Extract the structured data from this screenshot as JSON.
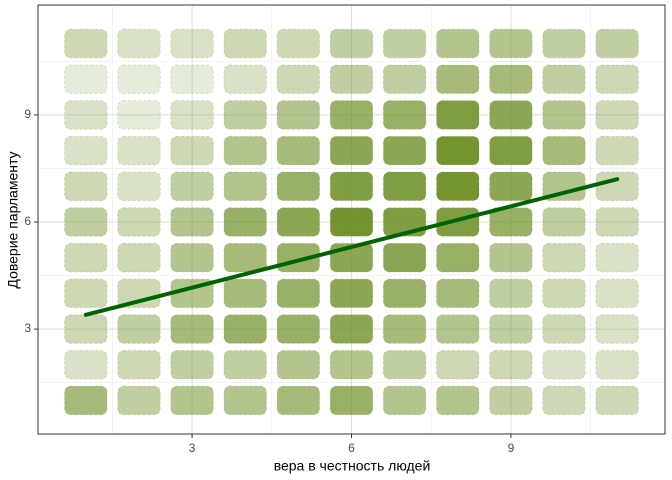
{
  "chart_data": {
    "type": "jitter-scatter",
    "x_label": "вера в честность людей",
    "y_label": "Доверие парламенту",
    "x": [
      1,
      2,
      3,
      4,
      5,
      6,
      7,
      8,
      9,
      10,
      11
    ],
    "y": [
      1,
      2,
      3,
      4,
      5,
      6,
      7,
      8,
      9,
      10,
      11
    ],
    "density": [
      [
        6,
        4,
        5,
        5,
        6,
        7,
        5,
        5,
        4,
        3,
        3
      ],
      [
        2,
        3,
        4,
        4,
        5,
        5,
        4,
        3,
        3,
        2,
        2
      ],
      [
        3,
        4,
        6,
        7,
        7,
        8,
        6,
        5,
        4,
        3,
        2
      ],
      [
        3,
        3,
        5,
        6,
        7,
        8,
        7,
        6,
        4,
        3,
        2
      ],
      [
        3,
        3,
        5,
        6,
        7,
        8,
        8,
        7,
        5,
        3,
        2
      ],
      [
        4,
        3,
        5,
        7,
        8,
        10,
        9,
        9,
        7,
        4,
        3
      ],
      [
        3,
        2,
        4,
        5,
        7,
        9,
        9,
        10,
        8,
        5,
        3
      ],
      [
        2,
        2,
        3,
        5,
        6,
        8,
        8,
        10,
        9,
        6,
        3
      ],
      [
        2,
        1,
        2,
        4,
        5,
        7,
        7,
        9,
        8,
        5,
        3
      ],
      [
        1,
        1,
        1,
        2,
        3,
        4,
        4,
        6,
        6,
        4,
        3
      ],
      [
        3,
        2,
        2,
        3,
        3,
        4,
        4,
        5,
        5,
        4,
        4
      ]
    ],
    "color": "#6b8e23",
    "fit": {
      "x": [
        1,
        11
      ],
      "values": [
        3.4,
        7.2
      ],
      "color": "#006400"
    },
    "xlim": [
      0.1,
      11.9
    ],
    "ylim": [
      0.06,
      12.08
    ],
    "xticks": [
      3,
      6,
      9
    ],
    "yticks": [
      3,
      6,
      9
    ],
    "xminor": [
      1.5,
      4.5,
      7.5,
      10.5
    ],
    "yminor": [
      1.5,
      4.5,
      7.5,
      10.5
    ],
    "grid": true
  }
}
